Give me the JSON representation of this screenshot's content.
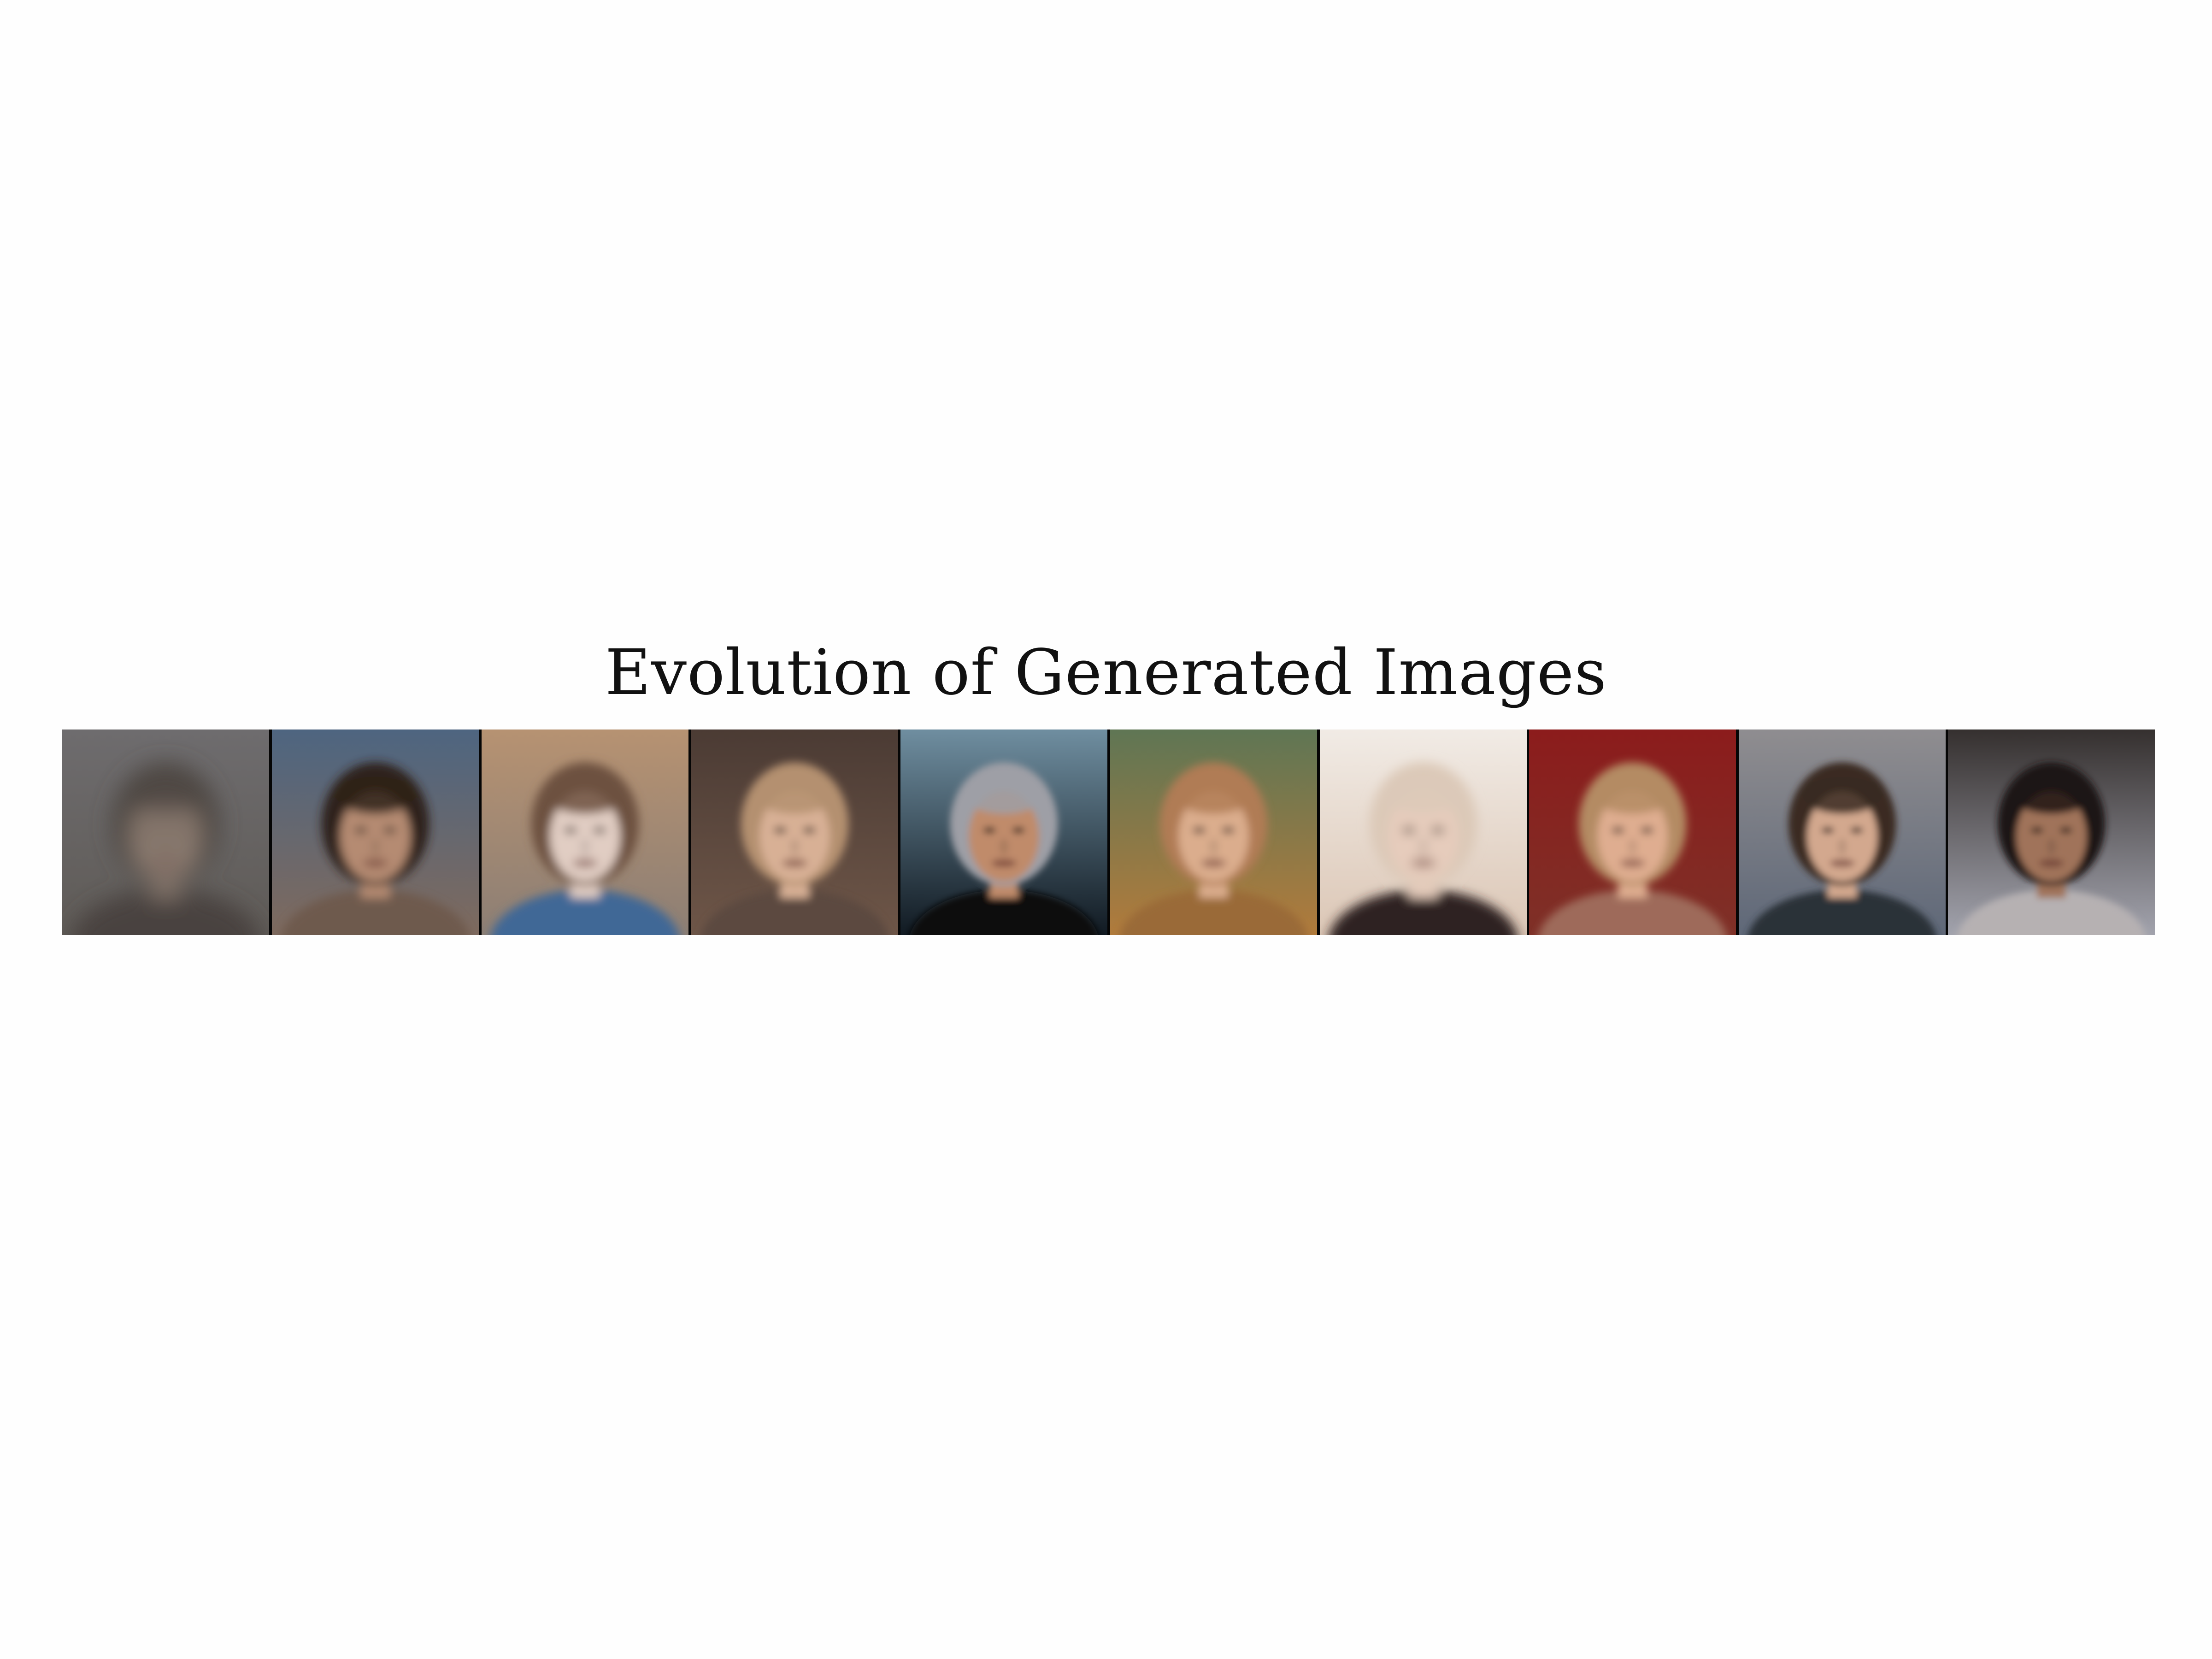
{
  "figure": {
    "title": "Evolution of Generated Images"
  },
  "frames": [
    {
      "index": 1,
      "bg_top": "#6e6c6e",
      "bg_bottom": "#5f5b57",
      "hair": "#4d4642",
      "skin": "#8a7a70",
      "shirt": "#4a4340",
      "blur": 16
    },
    {
      "index": 2,
      "bg_top": "#4e6580",
      "bg_bottom": "#7e6a5e",
      "hair": "#2f211a",
      "skin": "#b58b72",
      "shirt": "#6e5a4e",
      "blur": 7
    },
    {
      "index": 3,
      "bg_top": "#b69272",
      "bg_bottom": "#8d7f74",
      "hair": "#6d5140",
      "skin": "#e1cdc3",
      "shirt": "#3f6796",
      "blur": 7
    },
    {
      "index": 4,
      "bg_top": "#4b3b34",
      "bg_bottom": "#6e5648",
      "hair": "#b49070",
      "skin": "#d8b095",
      "shirt": "#5c4a40",
      "blur": 6
    },
    {
      "index": 5,
      "bg_top": "#6f8ea0",
      "bg_bottom": "#111a22",
      "hair": "#9e9fa6",
      "skin": "#c08b6a",
      "shirt": "#0d0d0f",
      "blur": 5
    },
    {
      "index": 6,
      "bg_top": "#5f7654",
      "bg_bottom": "#b17b3c",
      "hair": "#b07c55",
      "skin": "#dbad8d",
      "shirt": "#9a6a38",
      "blur": 6
    },
    {
      "index": 7,
      "bg_top": "#f1ebe5",
      "bg_bottom": "#dcc7b6",
      "hair": "#dcc9b8",
      "skin": "#e6ccbc",
      "shirt": "#2d2420",
      "blur": 8
    },
    {
      "index": 8,
      "bg_top": "#8c1c1c",
      "bg_bottom": "#7e3027",
      "hair": "#b48b63",
      "skin": "#dfad90",
      "shirt": "#9e6a5a",
      "blur": 6
    },
    {
      "index": 9,
      "bg_top": "#8f8d90",
      "bg_bottom": "#5f6878",
      "hair": "#3a2a22",
      "skin": "#d3a88e",
      "shirt": "#2c3038",
      "blur": 5
    },
    {
      "index": 10,
      "bg_top": "#35302f",
      "bg_bottom": "#a2a3ad",
      "hair": "#1c1614",
      "skin": "#a0735a",
      "shirt": "#b6b1b2",
      "blur": 5
    }
  ]
}
